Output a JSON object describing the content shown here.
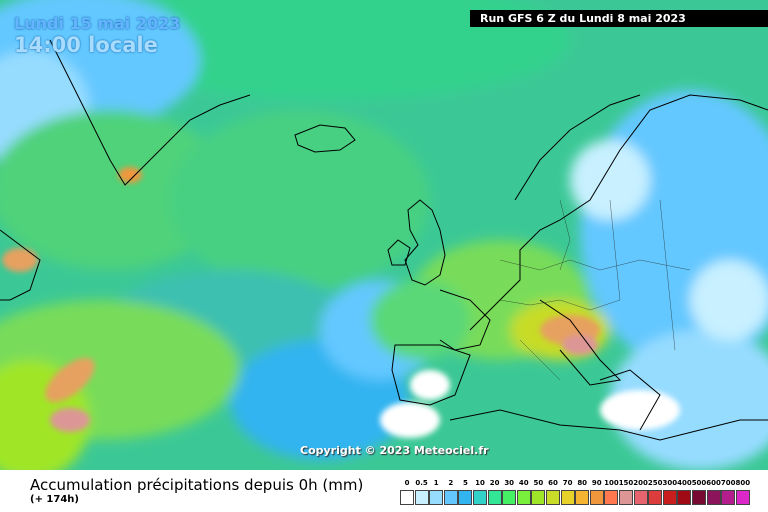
{
  "header": {
    "date": "Lundi 15 mai 2023",
    "time": "14:00 locale",
    "run": "Run GFS 6 Z du Lundi 8 mai 2023"
  },
  "copyright": "Copyright © 2023 Meteociel.fr",
  "footer": {
    "title": "Accumulation précipitations depuis 0h (mm)",
    "subtitle": "(+ 174h)"
  },
  "legend": {
    "labels": [
      "0",
      "0.5",
      "1",
      "2",
      "5",
      "10",
      "20",
      "30",
      "40",
      "50",
      "60",
      "70",
      "80",
      "90",
      "100",
      "150",
      "200",
      "250",
      "300",
      "400",
      "500",
      "600",
      "700",
      "800"
    ],
    "colors": [
      "#ffffff",
      "#c8f0ff",
      "#96dcff",
      "#64c8ff",
      "#32b4f0",
      "#32d2c8",
      "#32e696",
      "#46f064",
      "#78f03c",
      "#a0e628",
      "#c8dc28",
      "#e6d228",
      "#f5b432",
      "#f0963c",
      "#ff7850",
      "#dc9696",
      "#e6646e",
      "#dc3c3c",
      "#c81e1e",
      "#a00a14",
      "#780a32",
      "#8c145a",
      "#b41e8c",
      "#dc28c8"
    ]
  }
}
